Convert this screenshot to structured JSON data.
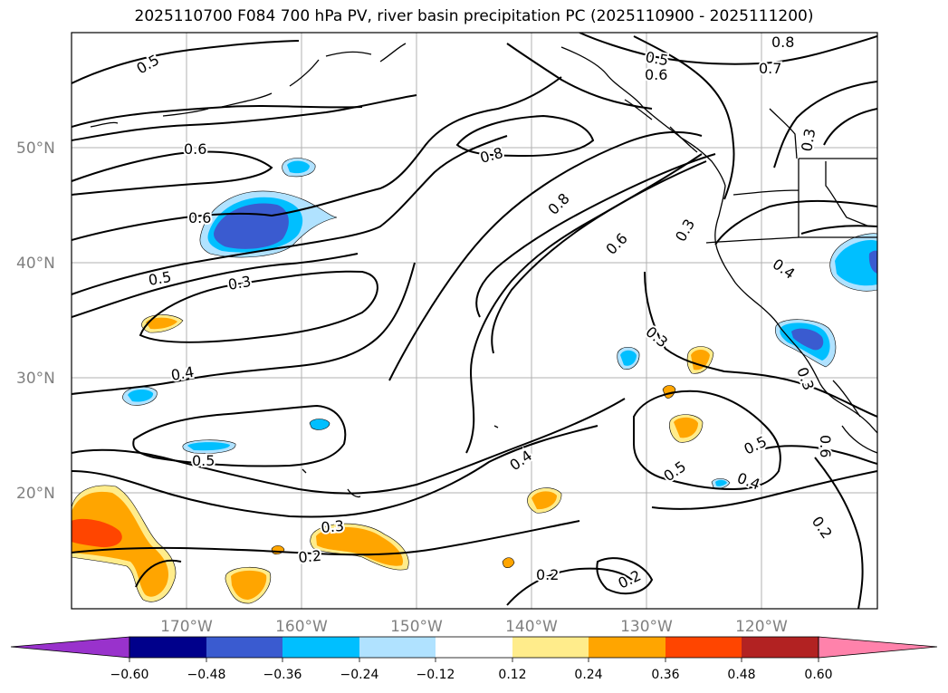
{
  "title": "2025110700 F084 700 hPa PV, river basin precipitation PC (2025110900 - 2025111200)",
  "map": {
    "lon_range": [
      -180,
      -110
    ],
    "lat_range": [
      10,
      60
    ],
    "lat_ticks": [
      "50°N",
      "40°N",
      "30°N",
      "20°N"
    ],
    "lon_ticks": [
      "170°W",
      "160°W",
      "150°W",
      "140°W",
      "130°W",
      "120°W"
    ],
    "contour_labels": [
      "0.5",
      "0.6",
      "0.8",
      "0.7",
      "0.5",
      "0.6",
      "0.8",
      "0.8",
      "0.3",
      "0.6",
      "0.5",
      "0.3",
      "0.6",
      "0.3",
      "0.4",
      "0.4",
      "0.3",
      "0.3",
      "0.5",
      "0.4",
      "0.5",
      "0.5",
      "0.4",
      "0.6",
      "0.3",
      "0.2",
      "0.2",
      "0.2",
      "0.2"
    ]
  },
  "colorbar": {
    "colors": [
      "#9932cc",
      "#00008b",
      "#3a5bd0",
      "#00bfff",
      "#b0e2ff",
      "#ffffff",
      "#ffec8b",
      "#ffa500",
      "#ff4500",
      "#b22222",
      "#ff82ab"
    ],
    "ticks": [
      "−0.60",
      "−0.48",
      "−0.36",
      "−0.24",
      "−0.12",
      "0.12",
      "0.24",
      "0.36",
      "0.48",
      "0.60"
    ]
  },
  "legend_colors": {
    "very_light_blue": "#b0e2ff",
    "light_blue": "#00bfff",
    "mid_blue": "#3a5bd0",
    "yellow": "#ffec8b",
    "orange": "#ffa500",
    "red_orange": "#ff4500"
  }
}
